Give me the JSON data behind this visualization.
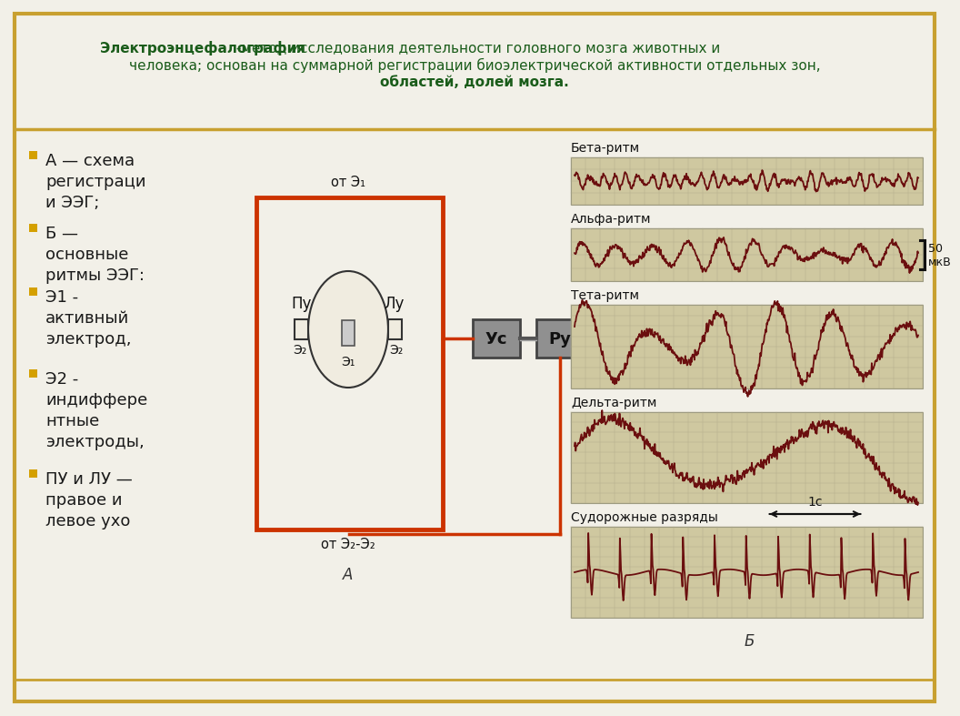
{
  "bg_color": "#f2f0e8",
  "border_color": "#c8a030",
  "text_color_green": "#1a5c1a",
  "text_color_black": "#1a1a1a",
  "bullet_color": "#d4a000",
  "bullet_items": [
    "А — схема\nрегистраци\nи ЭЭГ;",
    "Б —\nосновные\nритмы ЭЭГ:",
    "Э1 -\nактивный\nэлектрод,",
    "Э2 -\nиндиффере\nнтные\nэлектроды,",
    "ПУ и ЛУ —\nправое и\nлевое ухо"
  ],
  "diagram_box_color": "#cc3300",
  "diagram_wire_color": "#cc3300",
  "device_box_color": "#888888",
  "device_text_color": "#111111",
  "eeg_panel_bg": "#cfc8a0",
  "eeg_line_color": "#6b0f0f",
  "eeg_labels": [
    "Бета-ритм",
    "Альфа-ритм",
    "Тета-ритм",
    "Дельта-ритм",
    "Судорожные разряды"
  ],
  "label_A": "A",
  "label_B": "Б",
  "scale_50mkv": "50\nмкВ",
  "scale_1s": "1c"
}
